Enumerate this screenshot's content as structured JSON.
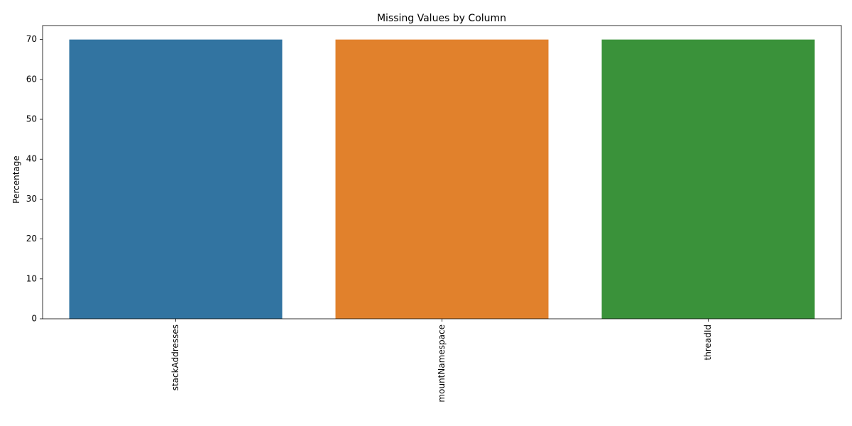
{
  "chart_data": {
    "type": "bar",
    "title": "Missing Values by Column",
    "xlabel": "",
    "ylabel": "Percentage",
    "categories": [
      "stackAddresses",
      "mountNamespace",
      "threadId"
    ],
    "values": [
      70,
      70,
      70
    ],
    "colors": [
      "#3274a1",
      "#e1812c",
      "#3a923a"
    ],
    "ylim": [
      0,
      73.5
    ],
    "yticks": [
      0,
      10,
      20,
      30,
      40,
      50,
      60,
      70
    ],
    "grid": false,
    "legend": "none",
    "x_tick_rotation": "vertical"
  }
}
